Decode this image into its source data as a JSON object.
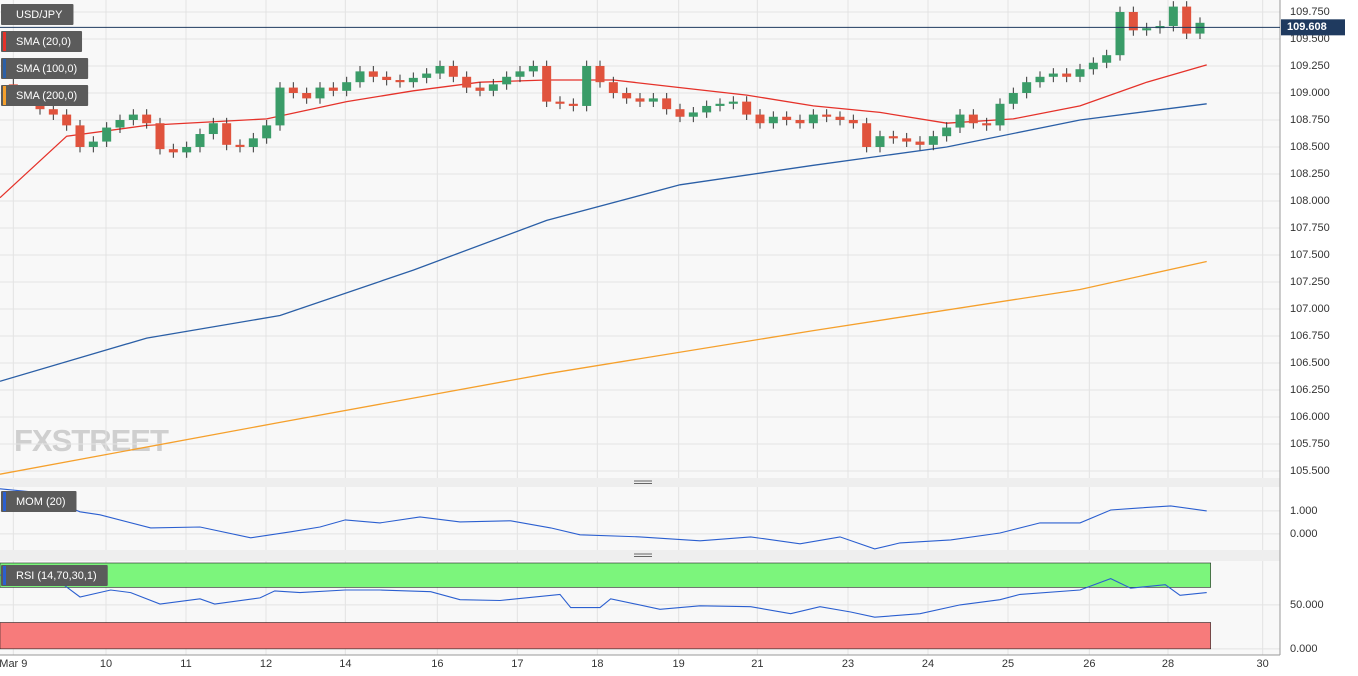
{
  "chart_data": [
    {
      "type": "candlestick",
      "title": "USD/JPY",
      "watermark": "FXSTREET",
      "up_color": "#3a9c68",
      "down_color": "#e0533d",
      "xlim": [
        -1,
        95
      ],
      "ylim": [
        105.435,
        109.861
      ],
      "yticks": [
        {
          "value": 105.5,
          "label": "105.500"
        },
        {
          "value": 105.75,
          "label": "105.750"
        },
        {
          "value": 106,
          "label": "106.000"
        },
        {
          "value": 106.25,
          "label": "106.250"
        },
        {
          "value": 106.5,
          "label": "106.500"
        },
        {
          "value": 106.75,
          "label": "106.750"
        },
        {
          "value": 107,
          "label": "107.000"
        },
        {
          "value": 107.25,
          "label": "107.250"
        },
        {
          "value": 107.5,
          "label": "107.500"
        },
        {
          "value": 107.75,
          "label": "107.750"
        },
        {
          "value": 108,
          "label": "108.000"
        },
        {
          "value": 108.25,
          "label": "108.250"
        },
        {
          "value": 108.5,
          "label": "108.500"
        },
        {
          "value": 108.75,
          "label": "108.750"
        },
        {
          "value": 109,
          "label": "109.000"
        },
        {
          "value": 109.25,
          "label": "109.250"
        },
        {
          "value": 109.5,
          "label": "109.500"
        },
        {
          "value": 109.75,
          "label": "109.750"
        }
      ],
      "last_price": 109.608,
      "x": [
        0,
        1,
        2,
        3,
        4,
        5,
        6,
        7,
        8,
        9,
        10,
        11,
        12,
        13,
        14,
        15,
        16,
        17,
        18,
        19,
        20,
        21,
        22,
        23,
        24,
        25,
        26,
        27,
        28,
        29,
        30,
        31,
        32,
        33,
        34,
        35,
        36,
        37,
        38,
        39,
        40,
        41,
        42,
        43,
        44,
        45,
        46,
        47,
        48,
        49,
        50,
        51,
        52,
        53,
        54,
        55,
        56,
        57,
        58,
        59,
        60,
        61,
        62,
        63,
        64,
        65,
        66,
        67,
        68,
        69,
        70,
        71,
        72,
        73,
        74,
        75,
        76,
        77,
        78,
        79,
        80,
        81,
        82,
        83,
        84,
        85,
        86,
        87,
        88,
        89
      ],
      "open": [
        109.08,
        109.0,
        108.95,
        108.85,
        108.8,
        108.7,
        108.5,
        108.55,
        108.68,
        108.75,
        108.8,
        108.72,
        108.48,
        108.45,
        108.5,
        108.62,
        108.72,
        108.52,
        108.5,
        108.58,
        108.7,
        109.05,
        109.0,
        108.95,
        109.05,
        109.02,
        109.1,
        109.2,
        109.15,
        109.12,
        109.1,
        109.14,
        109.18,
        109.25,
        109.15,
        109.05,
        109.02,
        109.08,
        109.15,
        109.2,
        109.25,
        108.92,
        108.9,
        108.88,
        109.25,
        109.1,
        109.0,
        108.95,
        108.92,
        108.95,
        108.85,
        108.78,
        108.82,
        108.88,
        108.9,
        108.92,
        108.8,
        108.72,
        108.78,
        108.75,
        108.72,
        108.8,
        108.78,
        108.75,
        108.72,
        108.5,
        108.6,
        108.58,
        108.55,
        108.52,
        108.6,
        108.68,
        108.8,
        108.72,
        108.7,
        108.9,
        109.0,
        109.1,
        109.15,
        109.18,
        109.15,
        109.22,
        109.28,
        109.35,
        109.75,
        109.58,
        109.6,
        109.62,
        109.8,
        109.55
      ],
      "high": [
        109.13,
        109.05,
        109.0,
        108.9,
        108.85,
        108.75,
        108.6,
        108.73,
        108.8,
        108.85,
        108.85,
        108.77,
        108.53,
        108.55,
        108.67,
        108.77,
        108.77,
        108.57,
        108.63,
        108.75,
        109.1,
        109.1,
        109.05,
        109.1,
        109.1,
        109.15,
        109.25,
        109.25,
        109.2,
        109.17,
        109.19,
        109.23,
        109.3,
        109.3,
        109.2,
        109.1,
        109.13,
        109.2,
        109.25,
        109.3,
        109.3,
        108.97,
        108.95,
        109.3,
        109.3,
        109.15,
        109.05,
        109.0,
        109.0,
        109.0,
        108.9,
        108.87,
        108.93,
        108.95,
        108.97,
        108.97,
        108.85,
        108.83,
        108.83,
        108.8,
        108.85,
        108.85,
        108.83,
        108.8,
        108.77,
        108.65,
        108.65,
        108.63,
        108.6,
        108.65,
        108.73,
        108.85,
        108.85,
        108.77,
        108.95,
        109.05,
        109.15,
        109.2,
        109.23,
        109.23,
        109.27,
        109.33,
        109.4,
        109.8,
        109.8,
        109.65,
        109.67,
        109.85,
        109.85,
        109.7
      ],
      "low": [
        108.95,
        108.9,
        108.8,
        108.75,
        108.65,
        108.45,
        108.45,
        108.5,
        108.63,
        108.7,
        108.67,
        108.43,
        108.4,
        108.4,
        108.45,
        108.57,
        108.47,
        108.45,
        108.45,
        108.53,
        108.65,
        108.95,
        108.9,
        108.9,
        108.97,
        108.97,
        109.05,
        109.1,
        109.07,
        109.05,
        109.05,
        109.09,
        109.13,
        109.1,
        109.0,
        108.97,
        108.97,
        109.03,
        109.1,
        109.15,
        108.87,
        108.85,
        108.83,
        108.83,
        109.05,
        108.95,
        108.9,
        108.87,
        108.87,
        108.8,
        108.73,
        108.73,
        108.77,
        108.83,
        108.85,
        108.75,
        108.67,
        108.67,
        108.7,
        108.67,
        108.67,
        108.73,
        108.7,
        108.67,
        108.45,
        108.45,
        108.53,
        108.5,
        108.47,
        108.47,
        108.55,
        108.63,
        108.67,
        108.65,
        108.65,
        108.85,
        108.95,
        109.05,
        109.1,
        109.1,
        109.1,
        109.17,
        109.23,
        109.3,
        109.53,
        109.53,
        109.55,
        109.57,
        109.5,
        109.5
      ],
      "close": [
        109.0,
        108.95,
        108.85,
        108.8,
        108.7,
        108.5,
        108.55,
        108.68,
        108.75,
        108.8,
        108.72,
        108.48,
        108.45,
        108.5,
        108.62,
        108.72,
        108.52,
        108.5,
        108.58,
        108.7,
        109.05,
        109.0,
        108.95,
        109.05,
        109.02,
        109.1,
        109.2,
        109.15,
        109.12,
        109.1,
        109.14,
        109.18,
        109.25,
        109.15,
        109.05,
        109.02,
        109.08,
        109.15,
        109.2,
        109.25,
        108.92,
        108.9,
        108.88,
        109.25,
        109.1,
        109.0,
        108.95,
        108.92,
        108.95,
        108.85,
        108.78,
        108.82,
        108.88,
        108.9,
        108.92,
        108.8,
        108.72,
        108.78,
        108.75,
        108.72,
        108.8,
        108.78,
        108.75,
        108.72,
        108.5,
        108.6,
        108.58,
        108.55,
        108.52,
        108.6,
        108.68,
        108.8,
        108.72,
        108.7,
        108.9,
        109.0,
        109.1,
        109.15,
        109.18,
        109.15,
        109.22,
        109.28,
        109.35,
        109.75,
        109.58,
        109.6,
        109.62,
        109.8,
        109.55,
        109.65
      ],
      "lines": [
        {
          "name": "SMA (20,0)",
          "color": "#e5322a",
          "x": [
            -1,
            4,
            10,
            19,
            25,
            30,
            35,
            40,
            45,
            50,
            55,
            60,
            65,
            70,
            75,
            80,
            85,
            89.5
          ],
          "values": [
            108.03,
            108.6,
            108.7,
            108.76,
            108.92,
            109.02,
            109.1,
            109.12,
            109.12,
            109.05,
            108.98,
            108.88,
            108.82,
            108.72,
            108.76,
            108.88,
            109.1,
            109.26
          ]
        },
        {
          "name": "SMA (100,0)",
          "color": "#2b5fa6",
          "x": [
            -1,
            10,
            20,
            30,
            40,
            50,
            60,
            70,
            80,
            89.5
          ],
          "values": [
            106.33,
            106.73,
            106.94,
            107.36,
            107.82,
            108.15,
            108.33,
            108.5,
            108.75,
            108.9
          ]
        },
        {
          "name": "SMA (200,0)",
          "color": "#f5a02c",
          "x": [
            -1,
            20,
            40,
            60,
            80,
            89.5
          ],
          "values": [
            105.47,
            105.95,
            106.4,
            106.8,
            107.18,
            107.44
          ]
        }
      ]
    },
    {
      "type": "line",
      "xlim": [
        -1,
        95
      ],
      "ylim": [
        -0.7,
        2.04
      ],
      "yticks": [
        {
          "value": 0,
          "label": "0.000"
        },
        {
          "value": 1,
          "label": "1.000"
        }
      ],
      "series": [
        {
          "name": "MOM (20)",
          "color": "#2b5fd0",
          "x": [
            -1,
            1.3,
            5,
            6.5,
            10.3,
            14,
            17.8,
            20.8,
            23,
            24.9,
            27.5,
            30.5,
            33.5,
            37.3,
            40.3,
            42.5,
            47,
            51.5,
            55.3,
            59,
            62,
            64.6,
            66.5,
            70.3,
            74,
            77,
            80,
            82.3,
            84.5,
            86.8,
            89.5
          ],
          "values": [
            1.96,
            1.83,
            0.96,
            0.83,
            0.26,
            0.3,
            -0.17,
            0.09,
            0.3,
            0.61,
            0.48,
            0.74,
            0.52,
            0.57,
            0.26,
            -0.04,
            -0.13,
            -0.3,
            -0.13,
            -0.43,
            -0.13,
            -0.65,
            -0.39,
            -0.26,
            0.04,
            0.48,
            0.48,
            1.04,
            1.13,
            1.22,
            1.0
          ]
        }
      ]
    },
    {
      "type": "line",
      "xlim": [
        -1,
        95
      ],
      "ylim": [
        -7,
        100
      ],
      "yticks": [
        {
          "value": 0,
          "label": "0.000"
        },
        {
          "value": 50,
          "label": "50.000"
        }
      ],
      "upper_band": 70,
      "lower_band": 30,
      "upper_color": "#7cf57c",
      "lower_color": "#f77b7b",
      "xticks": [
        {
          "value": 0,
          "label": "Mar 9"
        },
        {
          "value": 6.95,
          "label": "10"
        },
        {
          "value": 12.95,
          "label": "11"
        },
        {
          "value": 18.95,
          "label": "12"
        },
        {
          "value": 24.9,
          "label": "14"
        },
        {
          "value": 31.8,
          "label": "16"
        },
        {
          "value": 37.8,
          "label": "17"
        },
        {
          "value": 43.8,
          "label": "18"
        },
        {
          "value": 49.9,
          "label": "19"
        },
        {
          "value": 55.8,
          "label": "21"
        },
        {
          "value": 62.6,
          "label": "23"
        },
        {
          "value": 68.6,
          "label": "24"
        },
        {
          "value": 74.6,
          "label": "25"
        },
        {
          "value": 80.7,
          "label": "26"
        },
        {
          "value": 86.6,
          "label": "28"
        },
        {
          "value": 93.7,
          "label": "30"
        }
      ],
      "series": [
        {
          "name": "RSI (14,70,30,1)",
          "color": "#2b5fd0",
          "x": [
            -1,
            3.5,
            5,
            7.3,
            8.8,
            11,
            14,
            15.1,
            18.5,
            19.6,
            21.5,
            24.9,
            27.5,
            31.3,
            33.5,
            36.5,
            41,
            41.8,
            44,
            44.8,
            48.5,
            51.5,
            55.3,
            58.3,
            60.5,
            62.8,
            64.6,
            68,
            71,
            74,
            75.5,
            80,
            82.3,
            83.8,
            86.4,
            87.5,
            89.5
          ],
          "values": [
            84,
            76,
            59,
            67,
            64,
            51,
            57,
            51,
            58,
            66,
            64,
            67,
            67,
            65,
            56,
            55,
            62,
            47,
            47,
            57,
            45,
            49,
            48,
            40,
            48,
            42,
            36,
            40,
            50,
            56,
            62,
            67,
            80,
            69,
            73,
            61,
            64
          ]
        }
      ]
    }
  ]
}
